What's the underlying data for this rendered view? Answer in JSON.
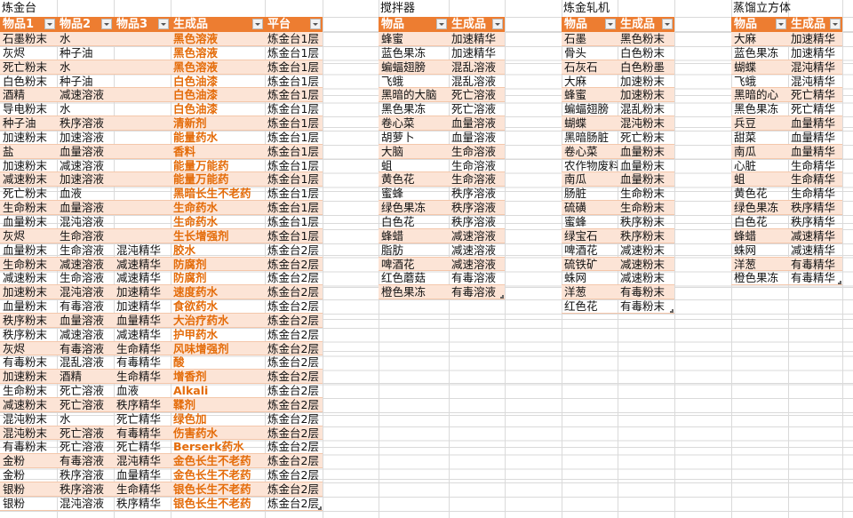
{
  "colors": {
    "header": "#ed7d31",
    "band": "#fce4d6",
    "product_text": "#e46c0a"
  },
  "tables": [
    {
      "title": "炼金台",
      "headers": [
        "物品1",
        "物品2",
        "物品3",
        "生成品",
        "平台"
      ],
      "product_col": 3,
      "rows": [
        [
          "石墨粉末",
          "水",
          "",
          "黑色溶液",
          "炼金台1层"
        ],
        [
          "灰烬",
          "种子油",
          "",
          "黑色溶液",
          "炼金台1层"
        ],
        [
          "死亡粉末",
          "水",
          "",
          "黑色溶液",
          "炼金台1层"
        ],
        [
          "白色粉末",
          "种子油",
          "",
          "白色油漆",
          "炼金台1层"
        ],
        [
          "酒精",
          "减速溶液",
          "",
          "白色油漆",
          "炼金台1层"
        ],
        [
          "导电粉末",
          "水",
          "",
          "白色油漆",
          "炼金台1层"
        ],
        [
          "种子油",
          "秩序溶液",
          "",
          "清新剂",
          "炼金台1层"
        ],
        [
          "加速粉末",
          "加速溶液",
          "",
          "能量药水",
          "炼金台1层"
        ],
        [
          "盐",
          "血量溶液",
          "",
          "香料",
          "炼金台1层"
        ],
        [
          "加速粉末",
          "减速溶液",
          "",
          "能量万能药",
          "炼金台1层"
        ],
        [
          "减速粉末",
          "加速溶液",
          "",
          "能量万能药",
          "炼金台1层"
        ],
        [
          "死亡粉末",
          "血液",
          "",
          "黑暗长生不老药",
          "炼金台1层"
        ],
        [
          "生命粉末",
          "血量溶液",
          "",
          "生命药水",
          "炼金台1层"
        ],
        [
          "血量粉末",
          "混沌溶液",
          "",
          "生命药水",
          "炼金台1层"
        ],
        [
          "灰烬",
          "生命溶液",
          "",
          "生长增强剂",
          "炼金台1层"
        ],
        [
          "血量粉末",
          "生命溶液",
          "混沌精华",
          "胶水",
          "炼金台2层"
        ],
        [
          "生命粉末",
          "减速溶液",
          "减速精华",
          "防腐剂",
          "炼金台2层"
        ],
        [
          "减速粉末",
          "生命溶液",
          "减速精华",
          "防腐剂",
          "炼金台2层"
        ],
        [
          "加速粉末",
          "混沌溶液",
          "加速精华",
          "速度药水",
          "炼金台2层"
        ],
        [
          "血量粉末",
          "有毒溶液",
          "加速精华",
          "食欲药水",
          "炼金台2层"
        ],
        [
          "秩序粉末",
          "血量溶液",
          "血量精华",
          "大治疗药水",
          "炼金台2层"
        ],
        [
          "秩序粉末",
          "减速溶液",
          "减速精华",
          "护甲药水",
          "炼金台2层"
        ],
        [
          "灰烬",
          "有毒溶液",
          "生命精华",
          "风味增强剂",
          "炼金台2层"
        ],
        [
          "有毒粉末",
          "混乱溶液",
          "有毒精华",
          "酸",
          "炼金台2层"
        ],
        [
          "加速粉末",
          "酒精",
          "生命精华",
          "增香剂",
          "炼金台2层"
        ],
        [
          "生命粉末",
          "死亡溶液",
          "血液",
          "Alkali",
          "炼金台2层"
        ],
        [
          "减速粉末",
          "死亡溶液",
          "秩序精华",
          "鞣剂",
          "炼金台2层"
        ],
        [
          "混沌粉末",
          "水",
          "死亡精华",
          "绿色加",
          "炼金台2层"
        ],
        [
          "混沌粉末",
          "死亡溶液",
          "有毒精华",
          "伤害药水",
          "炼金台2层"
        ],
        [
          "有毒粉末",
          "死亡溶液",
          "死亡精华",
          "Berserk药水",
          "炼金台2层"
        ],
        [
          "金粉",
          "有毒溶液",
          "混沌精华",
          "金色长生不老药",
          "炼金台2层"
        ],
        [
          "金粉",
          "秩序溶液",
          "血量精华",
          "金色长生不老药",
          "炼金台2层"
        ],
        [
          "银粉",
          "秩序溶液",
          "生命精华",
          "银色长生不老药",
          "炼金台2层"
        ],
        [
          "银粉",
          "混沌溶液",
          "秩序精华",
          "银色长生不老药",
          "炼金台2层"
        ]
      ]
    },
    {
      "title": "搅拌器",
      "headers": [
        "物品",
        "生成品"
      ],
      "product_col": -1,
      "rows": [
        [
          "蜂蜜",
          "加速精华"
        ],
        [
          "蓝色果冻",
          "加速精华"
        ],
        [
          "蝙蝠翅膀",
          "混乱溶液"
        ],
        [
          "飞蛾",
          "混乱溶液"
        ],
        [
          "黑暗的大脑",
          "死亡溶液"
        ],
        [
          "黑色果冻",
          "死亡溶液"
        ],
        [
          "卷心菜",
          "血量溶液"
        ],
        [
          "胡萝卜",
          "血量溶液"
        ],
        [
          "大脑",
          "生命溶液"
        ],
        [
          "蛆",
          "生命溶液"
        ],
        [
          "黄色花",
          "生命溶液"
        ],
        [
          "蜜蜂",
          "秩序溶液"
        ],
        [
          "绿色果冻",
          "秩序溶液"
        ],
        [
          "白色花",
          "秩序溶液"
        ],
        [
          "蜂蜡",
          "减速溶液"
        ],
        [
          "脂肪",
          "减速溶液"
        ],
        [
          "啤酒花",
          "减速溶液"
        ],
        [
          "红色蘑菇",
          "有毒溶液"
        ],
        [
          "橙色果冻",
          "有毒溶液"
        ]
      ]
    },
    {
      "title": "炼金轧机",
      "headers": [
        "物品",
        "生成品"
      ],
      "product_col": -1,
      "rows": [
        [
          "石墨",
          "黑色粉末"
        ],
        [
          "骨头",
          "白色粉末"
        ],
        [
          "石灰石",
          "白色粉墨"
        ],
        [
          "大麻",
          "加速粉末"
        ],
        [
          "蜂蜜",
          "加速粉末"
        ],
        [
          "蝙蝠翅膀",
          "混乱粉末"
        ],
        [
          "蝴蝶",
          "混沌粉末"
        ],
        [
          "黑暗肠脏",
          "死亡粉末"
        ],
        [
          "卷心菜",
          "血量粉末"
        ],
        [
          "农作物废料",
          "血量粉末"
        ],
        [
          "南瓜",
          "血量粉末"
        ],
        [
          "肠脏",
          "生命粉末"
        ],
        [
          "硫磺",
          "生命粉末"
        ],
        [
          "蜜蜂",
          "秩序粉末"
        ],
        [
          "绿宝石",
          "秩序粉末"
        ],
        [
          "啤酒花",
          "减速粉末"
        ],
        [
          "硫铁矿",
          "减速粉末"
        ],
        [
          "蛛网",
          "减速粉末"
        ],
        [
          "洋葱",
          "有毒粉末"
        ],
        [
          "红色花",
          "有毒粉末"
        ]
      ]
    },
    {
      "title": "蒸馏立方体",
      "headers": [
        "物品",
        "生成品"
      ],
      "product_col": -1,
      "rows": [
        [
          "大麻",
          "加速精华"
        ],
        [
          "蓝色果冻",
          "加速精华"
        ],
        [
          "蝴蝶",
          "混沌精华"
        ],
        [
          "飞蛾",
          "混沌精华"
        ],
        [
          "黑暗的心",
          "死亡精华"
        ],
        [
          "黑色果冻",
          "死亡精华"
        ],
        [
          "兵豆",
          "血量精华"
        ],
        [
          "甜菜",
          "血量精华"
        ],
        [
          "南瓜",
          "血量精华"
        ],
        [
          "心脏",
          "生命精华"
        ],
        [
          "蛆",
          "生命精华"
        ],
        [
          "黄色花",
          "生命精华"
        ],
        [
          "绿色果冻",
          "秩序精华"
        ],
        [
          "白色花",
          "秩序精华"
        ],
        [
          "蜂蜡",
          "减速精华"
        ],
        [
          "蛛网",
          "减速精华"
        ],
        [
          "洋葱",
          "有毒精华"
        ],
        [
          "橙色果冻",
          "有毒精华"
        ]
      ]
    }
  ]
}
